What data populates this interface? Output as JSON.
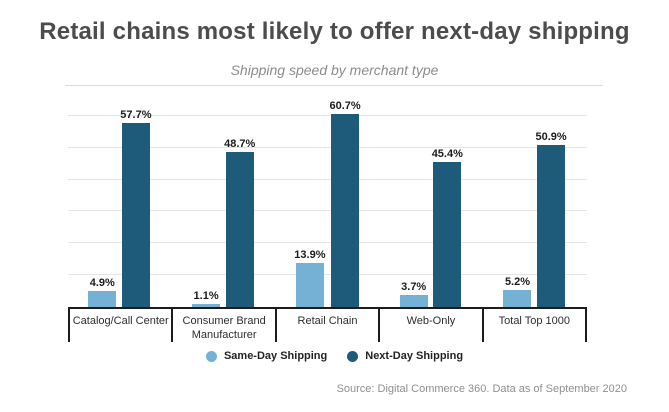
{
  "header": {
    "title": "Retail chains most likely to offer next-day shipping",
    "subtitle": "Shipping speed by merchant type"
  },
  "chart_data": {
    "type": "bar",
    "title": "Retail chains most likely to offer next-day shipping",
    "subtitle": "Shipping speed by merchant type",
    "categories": [
      "Catalog/Call Center",
      "Consumer Brand Manufacturer",
      "Retail Chain",
      "Web-Only",
      "Total Top 1000"
    ],
    "series": [
      {
        "name": "Same-Day Shipping",
        "color": "#74b1d5",
        "values": [
          4.9,
          1.1,
          13.9,
          3.7,
          5.2
        ],
        "labels": [
          "4.9%",
          "1.1%",
          "13.9%",
          "3.7%",
          "5.2%"
        ]
      },
      {
        "name": "Next-Day Shipping",
        "color": "#1e5b7a",
        "values": [
          57.7,
          48.7,
          60.7,
          45.4,
          50.9
        ],
        "labels": [
          "57.7%",
          "48.7%",
          "60.7%",
          "45.4%",
          "50.9%"
        ]
      }
    ],
    "xlabel": "",
    "ylabel": "",
    "ylim": [
      0,
      65
    ],
    "gridline_interval": 10,
    "grid": true,
    "legend_position": "bottom",
    "axis_color": "#1c1c1c",
    "gridline_color": "#e4e4e4"
  },
  "footer": {
    "source": "Source: Digital Commerce 360. Data as of  September 2020"
  }
}
